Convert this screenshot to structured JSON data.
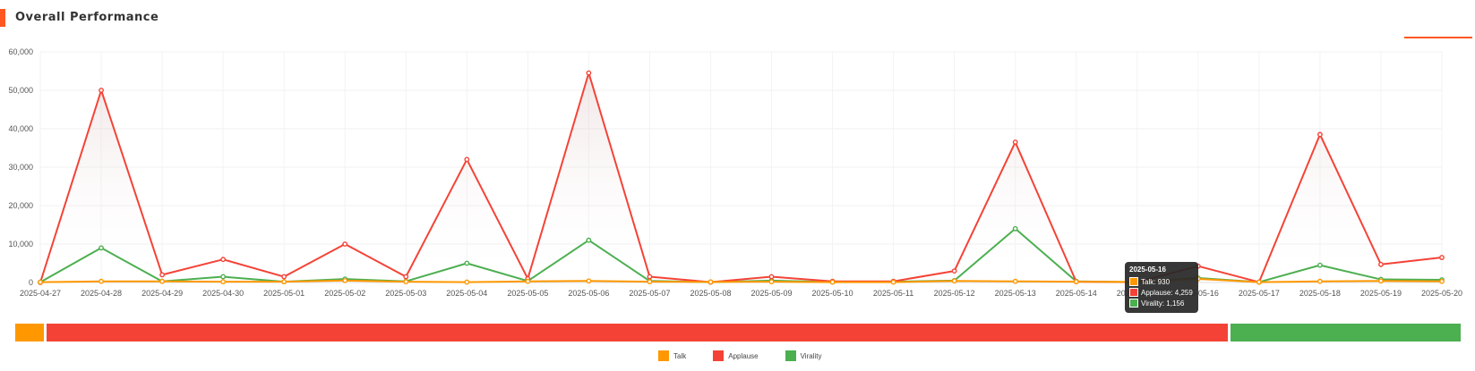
{
  "header": {
    "title": "Overall Performance"
  },
  "colors": {
    "talk": "#ff9800",
    "applause": "#f44336",
    "virality": "#4caf50",
    "accent": "#ff5722"
  },
  "chart_data": {
    "type": "line",
    "title": "Overall Performance",
    "xlabel": "",
    "ylabel": "",
    "ylim": [
      0,
      60000
    ],
    "yticks": [
      0,
      10000,
      20000,
      30000,
      40000,
      50000,
      60000
    ],
    "ytick_labels": [
      "0",
      "10,000",
      "20,000",
      "30,000",
      "40,000",
      "50,000",
      "60,000"
    ],
    "grid": true,
    "legend_position": "bottom",
    "categories": [
      "2025-04-27",
      "2025-04-28",
      "2025-04-29",
      "2025-04-30",
      "2025-05-01",
      "2025-05-02",
      "2025-05-03",
      "2025-05-04",
      "2025-05-05",
      "2025-05-06",
      "2025-05-07",
      "2025-05-08",
      "2025-05-09",
      "2025-05-10",
      "2025-05-11",
      "2025-05-12",
      "2025-05-13",
      "2025-05-14",
      "2025-05-15",
      "2025-05-16",
      "2025-05-17",
      "2025-05-18",
      "2025-05-19",
      "2025-05-20"
    ],
    "series": [
      {
        "name": "Talk",
        "color": "#ff9800",
        "values": [
          100,
          300,
          300,
          200,
          200,
          500,
          200,
          100,
          300,
          400,
          200,
          150,
          200,
          100,
          100,
          400,
          300,
          200,
          150,
          930,
          100,
          300,
          400,
          300
        ]
      },
      {
        "name": "Applause",
        "color": "#f44336",
        "values": [
          0,
          50000,
          2000,
          6000,
          1500,
          10000,
          1500,
          32000,
          1000,
          54500,
          1500,
          100,
          1500,
          300,
          300,
          3000,
          36500,
          200,
          100,
          4259,
          100,
          38500,
          4700,
          6500
        ]
      },
      {
        "name": "Virality",
        "color": "#4caf50",
        "values": [
          100,
          9000,
          300,
          1500,
          200,
          900,
          300,
          5000,
          400,
          11000,
          400,
          100,
          500,
          100,
          200,
          500,
          14000,
          300,
          100,
          1156,
          100,
          4500,
          800,
          700
        ]
      }
    ],
    "summary_bar": [
      {
        "name": "Talk",
        "color": "#ff9800",
        "share": 0.02
      },
      {
        "name": "Applause",
        "color": "#f44336",
        "share": 0.82
      },
      {
        "name": "Virality",
        "color": "#4caf50",
        "share": 0.16
      }
    ],
    "tooltip": {
      "title": "2025-05-16",
      "rows": [
        {
          "name": "Talk",
          "color": "#ff9800",
          "text": "Talk: 930"
        },
        {
          "name": "Applause",
          "color": "#f44336",
          "text": "Applause: 4,259"
        },
        {
          "name": "Virality",
          "color": "#4caf50",
          "text": "Virality: 1,156"
        }
      ]
    }
  }
}
